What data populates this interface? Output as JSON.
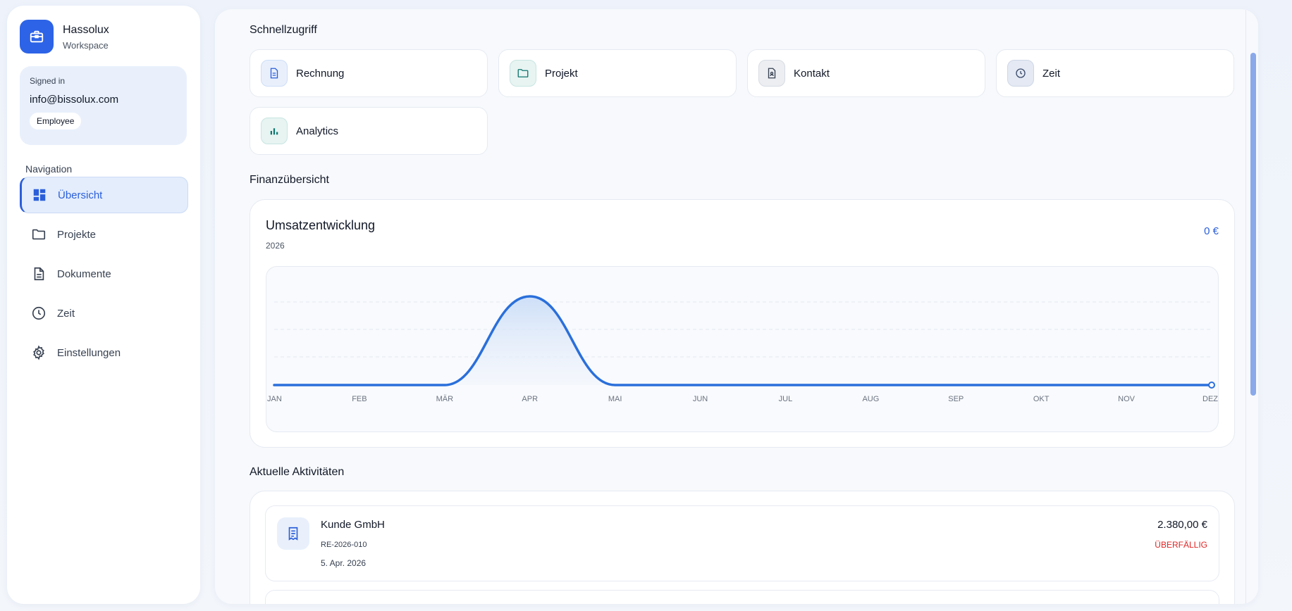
{
  "brand": {
    "name": "Hassolux",
    "subtitle": "Workspace"
  },
  "user": {
    "signed_in_label": "Signed in",
    "email": "info@bissolux.com",
    "role": "Employee"
  },
  "navigation": {
    "title": "Navigation",
    "items": [
      {
        "label": "Übersicht",
        "icon": "dashboard-icon",
        "active": true
      },
      {
        "label": "Projekte",
        "icon": "folder-icon",
        "active": false
      },
      {
        "label": "Dokumente",
        "icon": "document-icon",
        "active": false
      },
      {
        "label": "Zeit",
        "icon": "clock-icon",
        "active": false
      },
      {
        "label": "Einstellungen",
        "icon": "gear-icon",
        "active": false
      }
    ]
  },
  "quick_access": {
    "title": "Schnellzugriff",
    "items": [
      {
        "label": "Rechnung",
        "icon": "invoice-icon"
      },
      {
        "label": "Projekt",
        "icon": "folder-icon"
      },
      {
        "label": "Kontakt",
        "icon": "contact-icon"
      },
      {
        "label": "Zeit",
        "icon": "clock-icon"
      },
      {
        "label": "Analytics",
        "icon": "bar-chart-icon"
      }
    ]
  },
  "finance": {
    "section_title": "Finanzübersicht",
    "card_title": "Umsatzentwicklung",
    "year": "2026",
    "total": "0 €"
  },
  "chart_data": {
    "type": "area",
    "categories": [
      "JAN",
      "FEB",
      "MÄR",
      "APR",
      "MAI",
      "JUN",
      "JUL",
      "AUG",
      "SEP",
      "OKT",
      "NOV",
      "DEZ"
    ],
    "series": [
      {
        "values": [
          0,
          0,
          0,
          1,
          0,
          0,
          0,
          0,
          0,
          0,
          0,
          0
        ]
      }
    ],
    "title": "Umsatzentwicklung",
    "xlabel": "",
    "ylabel": "",
    "grid": true,
    "colors": {
      "line": "#2a6fdb"
    }
  },
  "activities": {
    "title": "Aktuelle Aktivitäten",
    "items": [
      {
        "name": "Kunde GmbH",
        "reference": "RE-2026-010",
        "date": "5. Apr. 2026",
        "amount": "2.380,00 €",
        "status": "ÜBERFÄLLIG",
        "icon": "receipt-icon"
      }
    ]
  },
  "colors": {
    "accent": "#2b5fd9",
    "danger": "#e02424",
    "brand": "#2d63e6"
  }
}
